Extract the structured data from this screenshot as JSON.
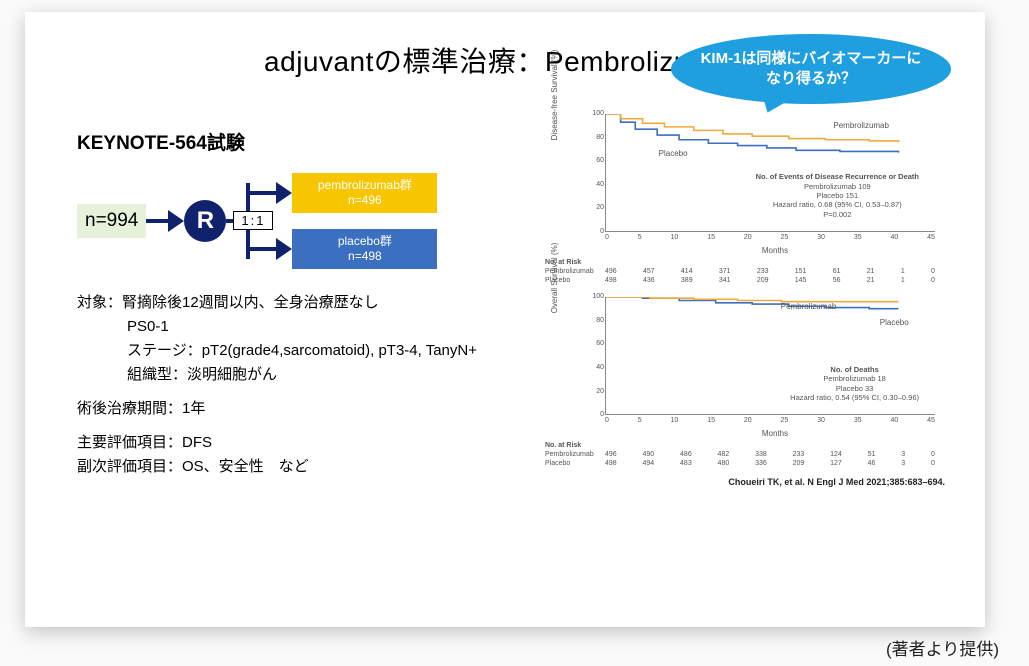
{
  "colors": {
    "accent_blue": "#1f9fe0",
    "navy": "#10226e",
    "arm_yellow": "#f7c600",
    "arm_blue": "#3b6fbf",
    "nbox_bg": "#e6f1d9",
    "km_line1": "#f2a93c",
    "km_line2": "#3b6fbf"
  },
  "title": "adjuvantの標準治療：Pembrolizumab",
  "subtitle": "KEYNOTE-564試験",
  "bubble_text": "KIM-1は同様にバイオマーカーになり得るか？",
  "flow": {
    "n_label": "n=994",
    "rand_letter": "R",
    "ratio": "1:1",
    "arm1": {
      "name": "pembrolizumab群",
      "n": "n=496"
    },
    "arm2": {
      "name": "placebo群",
      "n": "n=498"
    }
  },
  "criteria": {
    "line1": "対象：腎摘除後12週間以内、全身治療歴なし",
    "line2": "PS0-1",
    "line3": "ステージ：pT2(grade4,sarcomatoid), pT3-4, TanyN+",
    "line4": "組織型：淡明細胞がん",
    "line5": "術後治療期間：1年",
    "line6": "主要評価項目：DFS",
    "line7": "副次評価項目：OS、安全性　など"
  },
  "km1": {
    "ylabel": "Disease-free Survival (%)",
    "xlabel": "Months",
    "yticks": [
      "100",
      "80",
      "60",
      "40",
      "20",
      "0"
    ],
    "xticks": [
      "0",
      "5",
      "10",
      "15",
      "20",
      "25",
      "30",
      "35",
      "40",
      "45"
    ],
    "xlim": [
      0,
      45
    ],
    "ylim": [
      0,
      100
    ],
    "curve1_label": "Pembrolizumab",
    "curve2_label": "Placebo",
    "curve1_color": "#f2a93c",
    "curve2_color": "#3b6fbf",
    "curve1_points": [
      [
        0,
        100
      ],
      [
        2,
        96
      ],
      [
        5,
        92
      ],
      [
        8,
        89
      ],
      [
        12,
        86
      ],
      [
        16,
        83
      ],
      [
        20,
        81
      ],
      [
        25,
        79
      ],
      [
        30,
        78
      ],
      [
        36,
        77
      ],
      [
        40,
        76
      ]
    ],
    "curve2_points": [
      [
        0,
        100
      ],
      [
        2,
        93
      ],
      [
        4,
        87
      ],
      [
        7,
        82
      ],
      [
        10,
        78
      ],
      [
        14,
        75
      ],
      [
        18,
        73
      ],
      [
        22,
        71
      ],
      [
        26,
        69
      ],
      [
        32,
        68
      ],
      [
        40,
        67
      ]
    ],
    "stats_title": "No. of Events of Disease Recurrence or Death",
    "stats_row1": "Pembrolizumab    109",
    "stats_row2": "Placebo    151",
    "stats_hr": "Hazard ratio, 0.68 (95% CI, 0.53–0.87)",
    "stats_p": "P=0.002",
    "risk_header": "No. at Risk",
    "risk_row1_label": "Pembrolizumab",
    "risk_row1_vals": [
      "496",
      "457",
      "414",
      "371",
      "233",
      "151",
      "61",
      "21",
      "1",
      "0"
    ],
    "risk_row2_label": "Placebo",
    "risk_row2_vals": [
      "498",
      "436",
      "389",
      "341",
      "209",
      "145",
      "56",
      "21",
      "1",
      "0"
    ]
  },
  "km2": {
    "ylabel": "Overall Survival (%)",
    "xlabel": "Months",
    "yticks": [
      "100",
      "80",
      "60",
      "40",
      "20",
      "0"
    ],
    "xticks": [
      "0",
      "5",
      "10",
      "15",
      "20",
      "25",
      "30",
      "35",
      "40",
      "45"
    ],
    "xlim": [
      0,
      45
    ],
    "ylim": [
      0,
      100
    ],
    "curve1_label": "Pembrolizumab",
    "curve2_label": "Placebo",
    "curve1_color": "#f2a93c",
    "curve2_color": "#3b6fbf",
    "curve1_points": [
      [
        0,
        100
      ],
      [
        6,
        99
      ],
      [
        12,
        98
      ],
      [
        18,
        97
      ],
      [
        24,
        96
      ],
      [
        30,
        96
      ],
      [
        36,
        96
      ],
      [
        40,
        96
      ]
    ],
    "curve2_points": [
      [
        0,
        100
      ],
      [
        5,
        99
      ],
      [
        10,
        97
      ],
      [
        15,
        95
      ],
      [
        20,
        94
      ],
      [
        25,
        92
      ],
      [
        30,
        91
      ],
      [
        36,
        90
      ],
      [
        40,
        90
      ]
    ],
    "stats_title": "No. of Deaths",
    "stats_row1": "Pembrolizumab    18",
    "stats_row2": "Placebo    33",
    "stats_hr": "Hazard ratio, 0.54 (95% CI, 0.30–0.96)",
    "stats_p": "",
    "risk_header": "No. at Risk",
    "risk_row1_label": "Pembrolizumab",
    "risk_row1_vals": [
      "496",
      "490",
      "486",
      "482",
      "338",
      "233",
      "124",
      "51",
      "3",
      "0"
    ],
    "risk_row2_label": "Placebo",
    "risk_row2_vals": [
      "498",
      "494",
      "483",
      "480",
      "336",
      "209",
      "127",
      "46",
      "3",
      "0"
    ]
  },
  "citation": "Choueiri TK, et al. N Engl J Med 2021;385:683–694.",
  "provided": "(著者より提供)"
}
